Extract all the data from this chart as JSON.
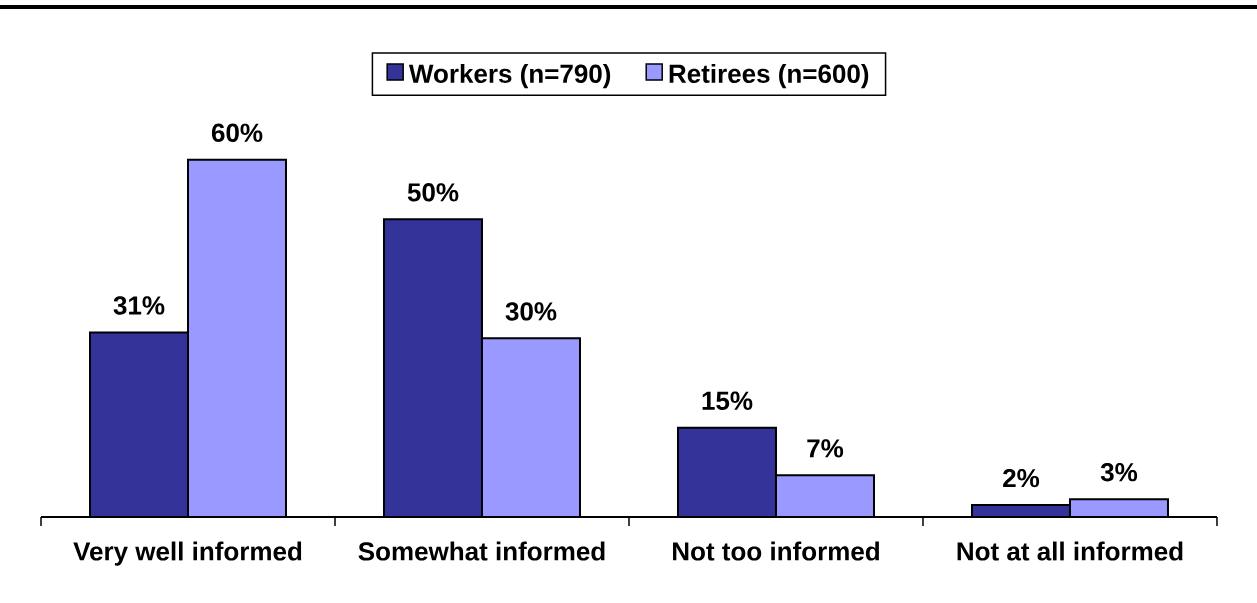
{
  "chart_data": {
    "type": "bar",
    "categories": [
      "Very well informed",
      "Somewhat informed",
      "Not too informed",
      "Not at all informed"
    ],
    "series": [
      {
        "name": "Workers (n=790)",
        "color": "#333399",
        "values": [
          31,
          50,
          15,
          2
        ],
        "value_labels": [
          "31%",
          "50%",
          "15%",
          "2%"
        ]
      },
      {
        "name": "Retirees (n=600)",
        "color": "#9999ff",
        "values": [
          60,
          30,
          7,
          3
        ],
        "value_labels": [
          "60%",
          "30%",
          "7%",
          "3%"
        ]
      }
    ],
    "legend": "top",
    "tick_labels": "x"
  }
}
